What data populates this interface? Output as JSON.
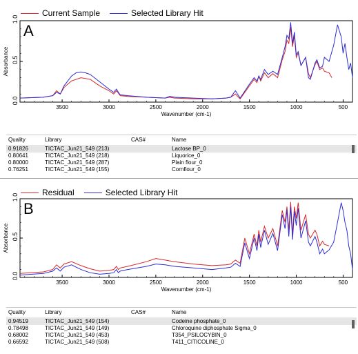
{
  "panels": [
    {
      "letter": "A",
      "legend": [
        {
          "name": "Current Sample",
          "color": "#d62728"
        },
        {
          "name": "Selected Library Hit",
          "color": "#2b2bd6"
        }
      ],
      "ylabel": "Absorbance",
      "xlabel": "Wavenumber (cm-1)",
      "yticks": [
        "0.0",
        "0.5",
        "1.0"
      ],
      "xticks": [
        "3500",
        "3000",
        "2500",
        "2000",
        "1500",
        "1000",
        "500"
      ],
      "table": {
        "headers": {
          "quality": "Quality",
          "library": "Library",
          "cas": "CAS#",
          "name": "Name"
        },
        "rows": [
          {
            "quality": "0.91826",
            "library": "TICTAC_Jun21_549 (213)",
            "cas": "",
            "name": "Lactose BP_0"
          },
          {
            "quality": "0.80641",
            "library": "TICTAC_Jun21_549 (218)",
            "cas": "",
            "name": "Liquorice_0"
          },
          {
            "quality": "0.80000",
            "library": "TICTAC_Jun21_549 (287)",
            "cas": "",
            "name": "Plain flour_0"
          },
          {
            "quality": "0.76251",
            "library": "TICTAC_Jun21_549 (155)",
            "cas": "",
            "name": "Cornflour_0"
          }
        ]
      }
    },
    {
      "letter": "B",
      "legend": [
        {
          "name": "Residual",
          "color": "#d62728"
        },
        {
          "name": "Selected Library Hit",
          "color": "#2b2bd6"
        }
      ],
      "ylabel": "Absorbance",
      "xlabel": "Wavenumber (cm-1)",
      "yticks": [
        "0.0",
        "0.5",
        "1.0"
      ],
      "xticks": [
        "3500",
        "3000",
        "2500",
        "2000",
        "1500",
        "1000",
        "500"
      ],
      "table": {
        "headers": {
          "quality": "Quality",
          "library": "Library",
          "cas": "CAS#",
          "name": "Name"
        },
        "rows": [
          {
            "quality": "0.94519",
            "library": "TICTAC_Jun21_549 (154)",
            "cas": "",
            "name": "Codeine phosphate_0"
          },
          {
            "quality": "0.78498",
            "library": "TICTAC_Jun21_549 (149)",
            "cas": "",
            "name": "Chloroquine diphosphate Sigma_0"
          },
          {
            "quality": "0.68002",
            "library": "TICTAC_Jun21_549 (453)",
            "cas": "",
            "name": "T354_PSILOCYBIN_0"
          },
          {
            "quality": "0.66592",
            "library": "TICTAC_Jun21_549 (508)",
            "cas": "",
            "name": "T411_CITICOLINE_0"
          }
        ]
      }
    }
  ],
  "chart_data": [
    {
      "type": "line",
      "xlabel": "Wavenumber (cm-1)",
      "ylabel": "Absorbance",
      "xlim": [
        3950,
        400
      ],
      "ylim": [
        0,
        1.0
      ],
      "series": [
        {
          "name": "Current Sample",
          "x": [
            3950,
            3700,
            3600,
            3560,
            3520,
            3480,
            3400,
            3300,
            3200,
            3100,
            3000,
            2950,
            2920,
            2900,
            2880,
            2800,
            2600,
            2400,
            2350,
            2300,
            2100,
            1900,
            1750,
            1700,
            1650,
            1600,
            1500,
            1450,
            1420,
            1400,
            1380,
            1340,
            1300,
            1250,
            1200,
            1150,
            1120,
            1100,
            1080,
            1060,
            1040,
            1020,
            1000,
            980,
            950,
            900,
            870,
            850,
            800,
            780,
            750,
            720,
            700,
            650,
            620
          ],
          "y": [
            0.05,
            0.06,
            0.08,
            0.14,
            0.1,
            0.18,
            0.26,
            0.3,
            0.28,
            0.2,
            0.14,
            0.1,
            0.14,
            0.11,
            0.08,
            0.07,
            0.06,
            0.05,
            0.06,
            0.05,
            0.04,
            0.04,
            0.05,
            0.06,
            0.1,
            0.04,
            0.2,
            0.28,
            0.24,
            0.32,
            0.26,
            0.36,
            0.3,
            0.35,
            0.3,
            0.52,
            0.62,
            0.76,
            0.72,
            0.92,
            0.68,
            0.82,
            0.55,
            0.6,
            0.45,
            0.55,
            0.35,
            0.3,
            0.46,
            0.5,
            0.4,
            0.42,
            0.38,
            0.36,
            0.3
          ]
        },
        {
          "name": "Selected Library Hit",
          "x": [
            3950,
            3700,
            3600,
            3560,
            3520,
            3480,
            3400,
            3350,
            3300,
            3250,
            3200,
            3100,
            3000,
            2950,
            2920,
            2900,
            2880,
            2800,
            2600,
            2400,
            2350,
            2300,
            2100,
            1900,
            1750,
            1700,
            1650,
            1600,
            1500,
            1450,
            1420,
            1400,
            1380,
            1340,
            1300,
            1250,
            1200,
            1150,
            1120,
            1100,
            1080,
            1060,
            1040,
            1020,
            1000,
            980,
            950,
            900,
            870,
            850,
            800,
            780,
            750,
            720,
            700,
            650,
            600,
            560,
            520,
            500,
            480,
            460,
            440,
            420,
            400
          ],
          "y": [
            0.05,
            0.06,
            0.08,
            0.12,
            0.1,
            0.2,
            0.32,
            0.36,
            0.37,
            0.36,
            0.34,
            0.25,
            0.16,
            0.12,
            0.16,
            0.12,
            0.09,
            0.08,
            0.06,
            0.05,
            0.07,
            0.06,
            0.05,
            0.04,
            0.05,
            0.06,
            0.14,
            0.05,
            0.22,
            0.3,
            0.26,
            0.32,
            0.28,
            0.4,
            0.34,
            0.38,
            0.34,
            0.55,
            0.68,
            0.82,
            0.78,
            0.98,
            0.72,
            0.86,
            0.58,
            0.62,
            0.45,
            0.55,
            0.3,
            0.28,
            0.48,
            0.52,
            0.42,
            0.44,
            0.55,
            0.5,
            0.7,
            0.95,
            0.8,
            0.6,
            0.72,
            0.55,
            0.4,
            0.48,
            0.3
          ]
        }
      ]
    },
    {
      "type": "line",
      "xlabel": "Wavenumber (cm-1)",
      "ylabel": "Absorbance",
      "xlim": [
        3950,
        400
      ],
      "ylim": [
        0,
        1.0
      ],
      "series": [
        {
          "name": "Residual",
          "x": [
            3950,
            3700,
            3600,
            3560,
            3520,
            3480,
            3400,
            3300,
            3200,
            3100,
            3000,
            2950,
            2920,
            2900,
            2880,
            2800,
            2600,
            2500,
            2400,
            2350,
            2300,
            2100,
            1900,
            1750,
            1700,
            1650,
            1600,
            1550,
            1500,
            1450,
            1420,
            1400,
            1380,
            1340,
            1300,
            1250,
            1200,
            1150,
            1120,
            1100,
            1080,
            1060,
            1040,
            1020,
            1000,
            980,
            950,
            900,
            870,
            850,
            800,
            780,
            750,
            720,
            700,
            650
          ],
          "y": [
            0.05,
            0.07,
            0.1,
            0.16,
            0.12,
            0.17,
            0.2,
            0.15,
            0.11,
            0.08,
            0.09,
            0.1,
            0.14,
            0.1,
            0.12,
            0.14,
            0.2,
            0.24,
            0.22,
            0.21,
            0.2,
            0.17,
            0.15,
            0.16,
            0.17,
            0.22,
            0.18,
            0.5,
            0.3,
            0.55,
            0.4,
            0.6,
            0.45,
            0.65,
            0.5,
            0.62,
            0.4,
            0.85,
            0.7,
            0.9,
            0.6,
            0.96,
            0.55,
            0.9,
            0.75,
            0.95,
            0.6,
            0.8,
            0.55,
            0.5,
            0.6,
            0.55,
            0.4,
            0.46,
            0.42,
            0.4
          ]
        },
        {
          "name": "Selected Library Hit",
          "x": [
            3950,
            3700,
            3600,
            3560,
            3520,
            3480,
            3400,
            3300,
            3200,
            3100,
            3000,
            2950,
            2920,
            2900,
            2880,
            2800,
            2600,
            2500,
            2400,
            2350,
            2300,
            2100,
            1900,
            1750,
            1700,
            1650,
            1600,
            1550,
            1500,
            1450,
            1420,
            1400,
            1380,
            1340,
            1300,
            1250,
            1200,
            1150,
            1120,
            1100,
            1080,
            1060,
            1040,
            1020,
            1000,
            980,
            950,
            900,
            870,
            850,
            800,
            780,
            750,
            720,
            700,
            650,
            600,
            560,
            520,
            500,
            480,
            460,
            440,
            420,
            400
          ],
          "y": [
            0.03,
            0.05,
            0.08,
            0.12,
            0.08,
            0.13,
            0.16,
            0.1,
            0.06,
            0.04,
            0.05,
            0.06,
            0.1,
            0.06,
            0.08,
            0.1,
            0.14,
            0.17,
            0.16,
            0.15,
            0.14,
            0.12,
            0.1,
            0.12,
            0.13,
            0.18,
            0.14,
            0.44,
            0.24,
            0.5,
            0.34,
            0.55,
            0.38,
            0.6,
            0.42,
            0.56,
            0.34,
            0.8,
            0.62,
            0.86,
            0.52,
            0.9,
            0.48,
            0.84,
            0.66,
            0.88,
            0.5,
            0.72,
            0.45,
            0.4,
            0.52,
            0.45,
            0.3,
            0.36,
            0.3,
            0.35,
            0.45,
            0.7,
            0.95,
            0.85,
            0.7,
            0.6,
            0.4,
            0.3,
            0.1
          ]
        }
      ]
    }
  ]
}
